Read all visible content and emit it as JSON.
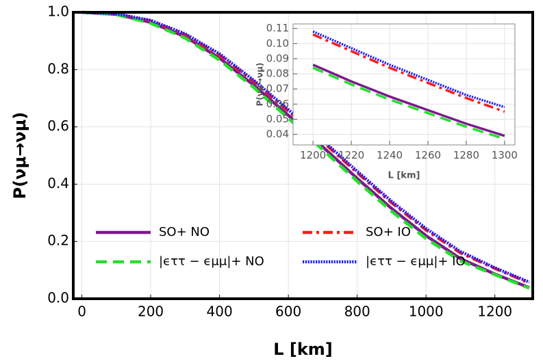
{
  "chart_data": [
    {
      "type": "line",
      "xlabel": "L [km]",
      "ylabel": "P(νμ→νμ)",
      "x": [
        0,
        100,
        200,
        300,
        400,
        500,
        600,
        700,
        800,
        900,
        1000,
        1100,
        1200,
        1300
      ],
      "series": [
        {
          "name": "SO+ NO",
          "color": "#7b1a8c",
          "dash": "solid",
          "values": [
            1,
            0.993,
            0.965,
            0.915,
            0.84,
            0.745,
            0.64,
            0.53,
            0.42,
            0.315,
            0.22,
            0.14,
            0.086,
            0.039
          ]
        },
        {
          "name": "SO+ IO",
          "color": "#ff1a1a",
          "dash": "dashdot",
          "values": [
            1,
            0.994,
            0.97,
            0.922,
            0.85,
            0.758,
            0.655,
            0.548,
            0.44,
            0.335,
            0.24,
            0.16,
            0.106,
            0.055
          ]
        },
        {
          "name": "|ϵττ − ϵμμ|+ NO",
          "color": "#22e02a",
          "dash": "dashed",
          "values": [
            1,
            0.992,
            0.962,
            0.91,
            0.833,
            0.737,
            0.63,
            0.52,
            0.41,
            0.305,
            0.21,
            0.132,
            0.084,
            0.037
          ]
        },
        {
          "name": "|ϵττ − ϵμμ|+ IO",
          "color": "#1a1aff",
          "dash": "dotted",
          "values": [
            1,
            0.995,
            0.972,
            0.925,
            0.855,
            0.762,
            0.66,
            0.553,
            0.445,
            0.34,
            0.245,
            0.165,
            0.108,
            0.058
          ]
        }
      ],
      "xlim": [
        -25,
        1310
      ],
      "ylim": [
        0,
        1
      ],
      "xticks": [
        0,
        200,
        400,
        600,
        800,
        1000,
        1200
      ],
      "yticks": [
        {
          "value": 0,
          "label": "0.0"
        },
        0.2,
        0.4,
        0.6,
        0.8,
        {
          "value": 1,
          "label": "1.0"
        }
      ],
      "grid": true,
      "legend_position": "lower left"
    },
    {
      "type": "line",
      "xlabel": "L [km]",
      "ylabel": "P(νμ→νμ)",
      "x": [
        1200,
        1220,
        1240,
        1260,
        1280,
        1300
      ],
      "series": [
        {
          "color": "#7b1a8c",
          "dash": "solid",
          "values": [
            0.086,
            0.075,
            0.065,
            0.056,
            0.047,
            0.039
          ]
        },
        {
          "color": "#ff1a1a",
          "dash": "dashdot",
          "values": [
            0.106,
            0.095,
            0.084,
            0.074,
            0.064,
            0.055
          ]
        },
        {
          "color": "#22e02a",
          "dash": "dashed",
          "values": [
            0.084,
            0.073,
            0.063,
            0.054,
            0.045,
            0.037
          ]
        },
        {
          "color": "#1a1aff",
          "dash": "dotted",
          "values": [
            0.108,
            0.097,
            0.086,
            0.076,
            0.066,
            0.058
          ]
        }
      ],
      "xlim": [
        1189.6,
        1305.4
      ],
      "ylim": [
        0.033,
        0.113
      ],
      "xticks": [
        1200,
        1220,
        1240,
        1260,
        1280,
        1300
      ],
      "yticks": [
        0.04,
        0.05,
        0.06,
        0.07,
        0.08,
        0.09,
        {
          "value": 0.1,
          "label": "0.10"
        },
        0.11
      ],
      "grid": true
    }
  ]
}
